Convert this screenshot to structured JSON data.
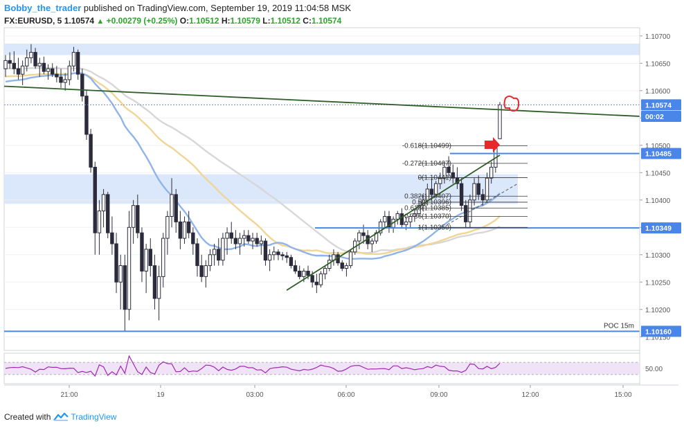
{
  "header": {
    "username": "Bobby_the_trader",
    "published_text": " published on TradingView.com, September 19, 2019 11:04:58 MSK",
    "symbol": "FX:EURUSD, 5",
    "last": "1.10574",
    "change": "+0.00279 (+0.25%)",
    "open_label": "O:",
    "open": "1.10512",
    "high_label": "H:",
    "high": "1.10579",
    "low_label": "L:",
    "low": "1.10512",
    "close_label": "C:",
    "close": "1.10574"
  },
  "footer": {
    "created_with": "Created with",
    "brand": "TradingView"
  },
  "colors": {
    "candle": "#2b2b3b",
    "trendline": "#2e5d27",
    "hline": "#4a86e8",
    "zone": "#dbe7fb",
    "ema_blue": "#90b4e9",
    "ema_orange": "#f0d594",
    "ema_grey": "#d7d7d7",
    "rsi_line": "#9c27b0",
    "rsi_band": "#f1e3f7",
    "marker_red": "#e8282b",
    "axis_label_bg": "#4a86e8"
  },
  "chart_data": {
    "type": "candlestick",
    "symbol": "FX:EURUSD",
    "timeframe": "5",
    "ylim": [
      1.10125,
      1.10715
    ],
    "price_ticks": [
      "1.10700",
      "1.10650",
      "1.10600",
      "1.10550",
      "1.10500",
      "1.10450",
      "1.10400",
      "1.10350",
      "1.10300",
      "1.10250",
      "1.10200",
      "1.10150"
    ],
    "time_ticks": [
      "21:00",
      "19",
      "03:00",
      "06:00",
      "09:00",
      "12:00",
      "15:00"
    ],
    "axis_labels": [
      {
        "text": "1.10574",
        "price": 1.10574
      },
      {
        "text": "00:02",
        "price": 1.10553
      },
      {
        "text": "1.10485",
        "price": 1.10485
      },
      {
        "text": "1.10349",
        "price": 1.10349
      },
      {
        "text": "1.10160",
        "price": 1.1016
      }
    ],
    "fib_levels": [
      {
        "label": "-0.618(1.10499)",
        "price": 1.10499
      },
      {
        "label": "-0.272(1.10467)",
        "price": 1.10467
      },
      {
        "label": "0(1.10441)",
        "price": 1.10441
      },
      {
        "label": "0.382(1.10407)",
        "price": 1.10407
      },
      {
        "label": "0.5(1.10396)",
        "price": 1.10396
      },
      {
        "label": "0.618(1.10385)",
        "price": 1.10385
      },
      {
        "label": "0.786(1.10370)",
        "price": 1.1037
      },
      {
        "label": "1(1.10350)",
        "price": 1.1035
      }
    ],
    "poc_label": "POC 15m",
    "poc_price": 1.1016,
    "rsi_tick": "50.00",
    "rsi_levels": [
      30,
      50,
      70
    ],
    "candles": [
      [
        1.1064,
        1.10665,
        1.10625,
        1.10655
      ],
      [
        1.10655,
        1.1067,
        1.1064,
        1.1065
      ],
      [
        1.1065,
        1.10672,
        1.1063,
        1.1064
      ],
      [
        1.1064,
        1.1066,
        1.1062,
        1.1063
      ],
      [
        1.1063,
        1.10655,
        1.1061,
        1.10645
      ],
      [
        1.10645,
        1.10675,
        1.10635,
        1.1066
      ],
      [
        1.1066,
        1.10685,
        1.1065,
        1.1067
      ],
      [
        1.1067,
        1.10678,
        1.1064,
        1.10645
      ],
      [
        1.10645,
        1.1066,
        1.10625,
        1.1065
      ],
      [
        1.1065,
        1.10662,
        1.1063,
        1.10635
      ],
      [
        1.10635,
        1.10648,
        1.1062,
        1.1064
      ],
      [
        1.1064,
        1.1065,
        1.10625,
        1.1063
      ],
      [
        1.1063,
        1.10645,
        1.10615,
        1.10625
      ],
      [
        1.10625,
        1.1064,
        1.10605,
        1.10615
      ],
      [
        1.10615,
        1.10632,
        1.106,
        1.1062
      ],
      [
        1.1062,
        1.10655,
        1.1061,
        1.10645
      ],
      [
        1.10645,
        1.1068,
        1.10635,
        1.1067
      ],
      [
        1.1067,
        1.10675,
        1.1062,
        1.1063
      ],
      [
        1.1063,
        1.1064,
        1.1058,
        1.1059
      ],
      [
        1.1059,
        1.106,
        1.1051,
        1.1052
      ],
      [
        1.1052,
        1.1053,
        1.1045,
        1.1046
      ],
      [
        1.1046,
        1.1047,
        1.103,
        1.1034
      ],
      [
        1.1034,
        1.104,
        1.103,
        1.1038
      ],
      [
        1.1038,
        1.1042,
        1.1035,
        1.1041
      ],
      [
        1.1041,
        1.10415,
        1.1033,
        1.1034
      ],
      [
        1.1034,
        1.1037,
        1.103,
        1.1032
      ],
      [
        1.1032,
        1.1034,
        1.1023,
        1.1025
      ],
      [
        1.1025,
        1.103,
        1.102,
        1.1028
      ],
      [
        1.1028,
        1.103,
        1.1016,
        1.102
      ],
      [
        1.102,
        1.1038,
        1.1018,
        1.1035
      ],
      [
        1.1035,
        1.104,
        1.1032,
        1.1039
      ],
      [
        1.1039,
        1.1041,
        1.1033,
        1.1034
      ],
      [
        1.1034,
        1.1035,
        1.1025,
        1.1027
      ],
      [
        1.1027,
        1.1032,
        1.1023,
        1.1031
      ],
      [
        1.1031,
        1.1033,
        1.1026,
        1.1028
      ],
      [
        1.1028,
        1.103,
        1.102,
        1.1022
      ],
      [
        1.1022,
        1.1028,
        1.1018,
        1.1026
      ],
      [
        1.1026,
        1.1034,
        1.1024,
        1.1033
      ],
      [
        1.1033,
        1.1038,
        1.103,
        1.1037
      ],
      [
        1.1037,
        1.1044,
        1.1035,
        1.1041
      ],
      [
        1.1041,
        1.1042,
        1.1034,
        1.1036
      ],
      [
        1.1036,
        1.1038,
        1.1031,
        1.1033
      ],
      [
        1.1033,
        1.1037,
        1.1032,
        1.1036
      ],
      [
        1.1036,
        1.1038,
        1.1033,
        1.1034
      ],
      [
        1.1034,
        1.1035,
        1.103,
        1.1032
      ],
      [
        1.1032,
        1.1033,
        1.1026,
        1.1028
      ],
      [
        1.1028,
        1.103,
        1.1025,
        1.1026
      ],
      [
        1.1026,
        1.1029,
        1.1024,
        1.1028
      ],
      [
        1.1028,
        1.1031,
        1.1027,
        1.103
      ],
      [
        1.103,
        1.1032,
        1.1028,
        1.1031
      ],
      [
        1.1031,
        1.1033,
        1.1028,
        1.1029
      ],
      [
        1.1029,
        1.1034,
        1.1028,
        1.1033
      ],
      [
        1.1033,
        1.1035,
        1.103,
        1.1034
      ],
      [
        1.1034,
        1.1036,
        1.1032,
        1.1033
      ],
      [
        1.1033,
        1.10345,
        1.1031,
        1.1032
      ],
      [
        1.1032,
        1.1034,
        1.103,
        1.1033
      ],
      [
        1.1033,
        1.10345,
        1.10315,
        1.10335
      ],
      [
        1.10335,
        1.10345,
        1.1032,
        1.10325
      ],
      [
        1.10325,
        1.1034,
        1.1031,
        1.1033
      ],
      [
        1.1033,
        1.1034,
        1.10315,
        1.1032
      ],
      [
        1.1032,
        1.10335,
        1.103,
        1.10325
      ],
      [
        1.10325,
        1.1033,
        1.1028,
        1.1029
      ],
      [
        1.1029,
        1.1031,
        1.1027,
        1.103
      ],
      [
        1.103,
        1.10315,
        1.1029,
        1.10305
      ],
      [
        1.10305,
        1.1031,
        1.1029,
        1.103
      ],
      [
        1.103,
        1.10305,
        1.1029,
        1.10298
      ],
      [
        1.10298,
        1.10305,
        1.10285,
        1.10295
      ],
      [
        1.10295,
        1.103,
        1.10275,
        1.1028
      ],
      [
        1.1028,
        1.1029,
        1.10265,
        1.1027
      ],
      [
        1.1027,
        1.1028,
        1.10255,
        1.1026
      ],
      [
        1.1026,
        1.10275,
        1.1025,
        1.1027
      ],
      [
        1.1027,
        1.1028,
        1.10255,
        1.10262
      ],
      [
        1.10262,
        1.1027,
        1.1024,
        1.1025
      ],
      [
        1.1025,
        1.10265,
        1.1023,
        1.10245
      ],
      [
        1.10245,
        1.1027,
        1.1024,
        1.10265
      ],
      [
        1.10265,
        1.1028,
        1.10255,
        1.10275
      ],
      [
        1.10275,
        1.103,
        1.1027,
        1.1029
      ],
      [
        1.1029,
        1.1031,
        1.1028,
        1.103
      ],
      [
        1.103,
        1.10305,
        1.1028,
        1.10285
      ],
      [
        1.10285,
        1.1029,
        1.1027,
        1.10275
      ],
      [
        1.10275,
        1.10285,
        1.1026,
        1.1028
      ],
      [
        1.1028,
        1.1031,
        1.10275,
        1.10305
      ],
      [
        1.10305,
        1.1033,
        1.103,
        1.10325
      ],
      [
        1.10325,
        1.10345,
        1.1031,
        1.1034
      ],
      [
        1.1034,
        1.10355,
        1.1032,
        1.10335
      ],
      [
        1.10335,
        1.10345,
        1.1031,
        1.1032
      ],
      [
        1.1032,
        1.1033,
        1.10305,
        1.10325
      ],
      [
        1.10325,
        1.10345,
        1.1032,
        1.1034
      ],
      [
        1.1034,
        1.10365,
        1.10335,
        1.1036
      ],
      [
        1.1036,
        1.1038,
        1.1035,
        1.1037
      ],
      [
        1.1037,
        1.1038,
        1.1034,
        1.1035
      ],
      [
        1.1035,
        1.1037,
        1.1034,
        1.10365
      ],
      [
        1.10365,
        1.1038,
        1.10355,
        1.10375
      ],
      [
        1.10375,
        1.10385,
        1.1035,
        1.10355
      ],
      [
        1.10355,
        1.1037,
        1.10345,
        1.1036
      ],
      [
        1.1036,
        1.10375,
        1.1035,
        1.1037
      ],
      [
        1.1037,
        1.10385,
        1.1036,
        1.10375
      ],
      [
        1.10375,
        1.10395,
        1.1037,
        1.1039
      ],
      [
        1.1039,
        1.1041,
        1.1038,
        1.104
      ],
      [
        1.104,
        1.1043,
        1.1039,
        1.1042
      ],
      [
        1.1042,
        1.1044,
        1.104,
        1.1041
      ],
      [
        1.1041,
        1.10435,
        1.10405,
        1.1043
      ],
      [
        1.1043,
        1.1045,
        1.1042,
        1.1044
      ],
      [
        1.1044,
        1.1047,
        1.1043,
        1.1046
      ],
      [
        1.1046,
        1.1048,
        1.1044,
        1.1045
      ],
      [
        1.1045,
        1.10465,
        1.1043,
        1.1044
      ],
      [
        1.1044,
        1.1046,
        1.1042,
        1.1043
      ],
      [
        1.1043,
        1.1044,
        1.1038,
        1.1039
      ],
      [
        1.1039,
        1.104,
        1.1035,
        1.1036
      ],
      [
        1.1036,
        1.1041,
        1.1035,
        1.104
      ],
      [
        1.104,
        1.1044,
        1.1039,
        1.1043
      ],
      [
        1.1043,
        1.10445,
        1.104,
        1.1041
      ],
      [
        1.1041,
        1.1042,
        1.1039,
        1.104
      ],
      [
        1.104,
        1.1045,
        1.10395,
        1.1044
      ],
      [
        1.1044,
        1.1047,
        1.1043,
        1.1046
      ],
      [
        1.1046,
        1.105,
        1.1045,
        1.10495
      ],
      [
        1.10512,
        1.10579,
        1.10512,
        1.10574
      ]
    ]
  }
}
